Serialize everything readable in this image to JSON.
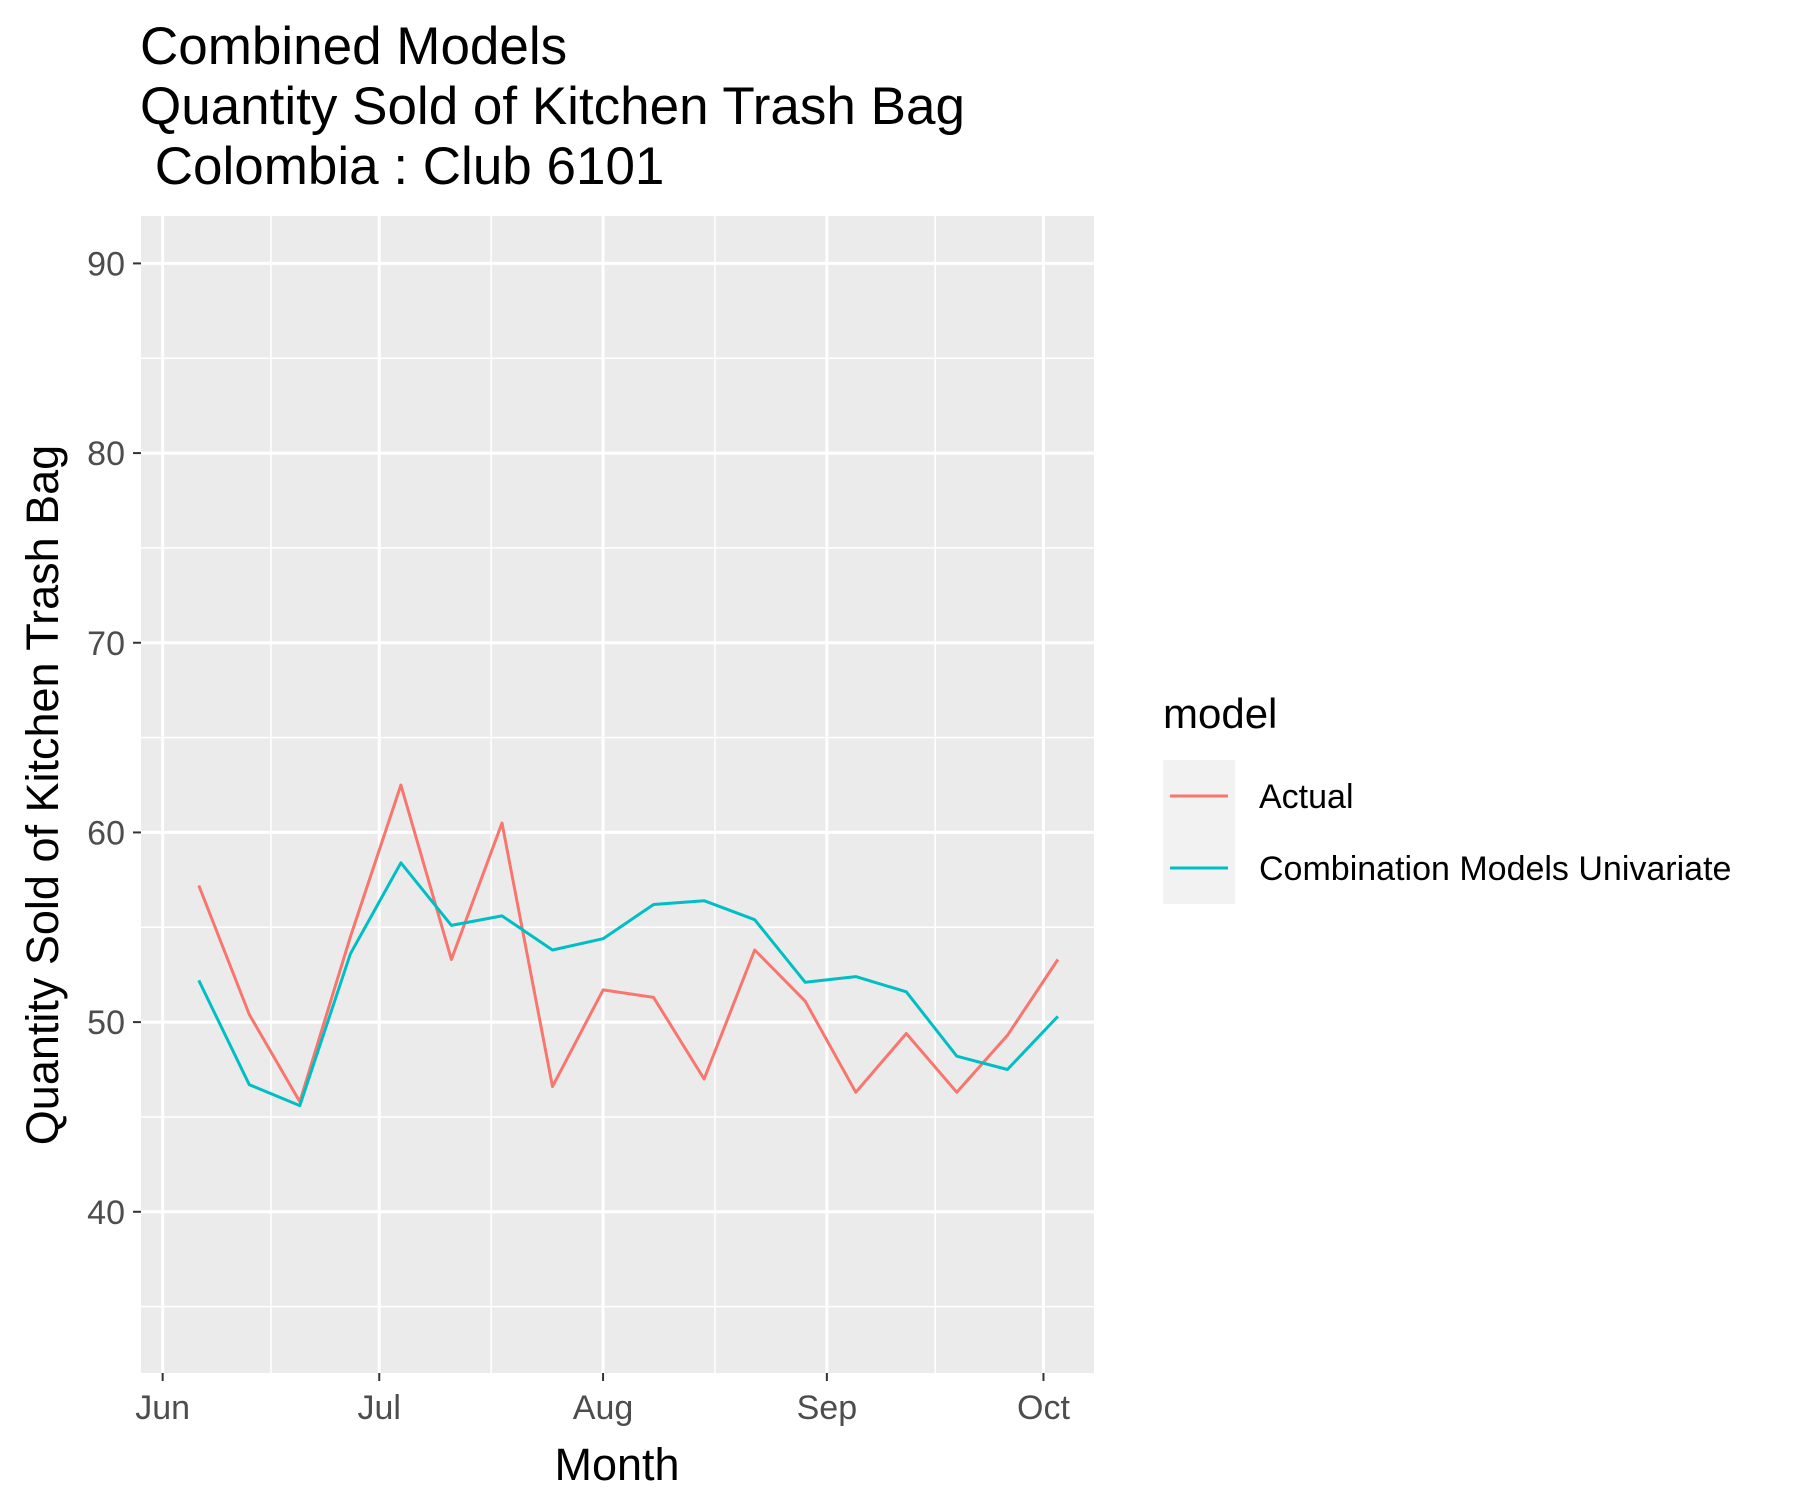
{
  "chart_data": {
    "type": "line",
    "title_lines": [
      "Combined Models",
      "Quantity Sold of Kitchen Trash Bag",
      " Colombia : Club 6101"
    ],
    "xlabel": "Month",
    "ylabel": "Quantity Sold of Kitchen Trash Bag",
    "x_ticks": [
      {
        "label": "Jun",
        "date": "2021-06-01"
      },
      {
        "label": "Jul",
        "date": "2021-07-01"
      },
      {
        "label": "Aug",
        "date": "2021-08-01"
      },
      {
        "label": "Sep",
        "date": "2021-09-01"
      },
      {
        "label": "Oct",
        "date": "2021-10-01"
      }
    ],
    "xlim": [
      "2021-05-29",
      "2021-10-08"
    ],
    "y_ticks": [
      40,
      50,
      60,
      70,
      80,
      90
    ],
    "ylim": [
      31.5,
      92.5
    ],
    "grid": true,
    "legend": {
      "title": "model",
      "position": "right"
    },
    "x": [
      "2021-06-06",
      "2021-06-13",
      "2021-06-20",
      "2021-06-27",
      "2021-07-04",
      "2021-07-11",
      "2021-07-18",
      "2021-07-25",
      "2021-08-01",
      "2021-08-08",
      "2021-08-15",
      "2021-08-22",
      "2021-08-29",
      "2021-09-05",
      "2021-09-12",
      "2021-09-19",
      "2021-09-26",
      "2021-10-03"
    ],
    "series": [
      {
        "name": "Actual",
        "color": "#F8766D",
        "values": [
          57.2,
          50.4,
          45.8,
          54.5,
          62.5,
          53.3,
          60.5,
          46.6,
          51.7,
          51.3,
          47.0,
          53.8,
          51.1,
          46.3,
          49.4,
          46.3,
          49.3,
          53.3
        ]
      },
      {
        "name": "Combination Models Univariate",
        "color": "#00BFC4",
        "values": [
          52.2,
          46.7,
          45.6,
          53.6,
          58.4,
          55.1,
          55.6,
          53.8,
          54.4,
          56.2,
          56.4,
          55.4,
          52.1,
          52.4,
          51.6,
          48.2,
          47.5,
          50.3
        ]
      }
    ]
  }
}
